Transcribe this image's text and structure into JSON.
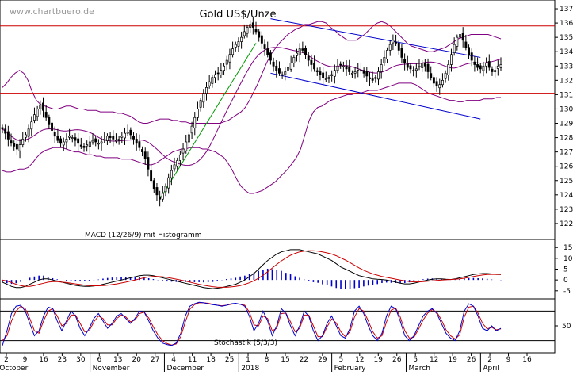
{
  "watermark": "www.chartbuero.de",
  "title": "Gold US$/Unze",
  "macd_label": "MACD (12/26/9) mit Histogramm",
  "stoch_label": "Stochastik (5/3/3)",
  "colors": {
    "candle": "#000000",
    "bollinger": "#800080",
    "support_resistance": "#cc0000",
    "trend_channel": "#0000cc",
    "uptrend": "#009900",
    "macd_line": "#000000",
    "signal_line": "#cc0000",
    "histogram": "#0000cc",
    "stoch_k": "#0000cc",
    "stoch_d": "#cc0000",
    "grid": "#000000"
  },
  "chart_data": [
    {
      "type": "candlestick",
      "title": "Gold US$/Unze",
      "ylim": [
        1210,
        1375
      ],
      "y_ticks": [
        1220,
        1230,
        1240,
        1250,
        1260,
        1270,
        1280,
        1290,
        1300,
        1310,
        1320,
        1330,
        1340,
        1350,
        1360,
        1370
      ],
      "horizontal_lines": [
        1358,
        1311
      ],
      "date_ticks": [
        "2",
        "9",
        "16",
        "23",
        "30",
        "6",
        "13",
        "20",
        "27",
        "4",
        "11",
        "18",
        "25",
        "1",
        "8",
        "15",
        "22",
        "29",
        "5",
        "12",
        "19",
        "26",
        "5",
        "12",
        "19",
        "26",
        "2",
        "9",
        "16"
      ],
      "month_labels": [
        "October",
        "November",
        "December",
        "2018",
        "February",
        "March",
        "April"
      ],
      "closes": [
        1286,
        1283,
        1279,
        1276,
        1274,
        1272,
        1275,
        1279,
        1282,
        1286,
        1291,
        1296,
        1300,
        1303,
        1299,
        1294,
        1289,
        1285,
        1281,
        1278,
        1276,
        1277,
        1279,
        1281,
        1280,
        1278,
        1276,
        1274,
        1273,
        1275,
        1277,
        1278,
        1277,
        1276,
        1277,
        1279,
        1281,
        1280,
        1279,
        1278,
        1279,
        1281,
        1283,
        1284,
        1282,
        1279,
        1276,
        1273,
        1270,
        1265,
        1258,
        1250,
        1244,
        1240,
        1237,
        1241,
        1246,
        1252,
        1257,
        1261,
        1264,
        1268,
        1272,
        1277,
        1282,
        1288,
        1294,
        1300,
        1306,
        1311,
        1315,
        1319,
        1322,
        1324,
        1325,
        1327,
        1330,
        1334,
        1338,
        1342,
        1345,
        1347,
        1350,
        1354,
        1357,
        1359,
        1357,
        1354,
        1350,
        1346,
        1342,
        1338,
        1334,
        1330,
        1327,
        1325,
        1324,
        1326,
        1329,
        1332,
        1336,
        1339,
        1342,
        1341,
        1338,
        1334,
        1331,
        1328,
        1326,
        1324,
        1322,
        1321,
        1322,
        1324,
        1327,
        1330,
        1331,
        1330,
        1328,
        1326,
        1325,
        1326,
        1328,
        1327,
        1325,
        1323,
        1321,
        1320,
        1322,
        1326,
        1331,
        1336,
        1341,
        1345,
        1348,
        1346,
        1341,
        1336,
        1332,
        1329,
        1328,
        1327,
        1328,
        1330,
        1332,
        1330,
        1326,
        1322,
        1318,
        1316,
        1317,
        1320,
        1325,
        1331,
        1338,
        1345,
        1350,
        1352,
        1348,
        1343,
        1338,
        1334,
        1331,
        1329,
        1328,
        1330,
        1332,
        1329,
        1326,
        1327,
        1330,
        1331
      ],
      "bollinger_upper": [
        1315,
        1318,
        1322,
        1325,
        1327,
        1325,
        1320,
        1312,
        1306,
        1303,
        1302,
        1301,
        1300,
        1300,
        1301,
        1302,
        1302,
        1301,
        1300,
        1300,
        1299,
        1299,
        1299,
        1298,
        1298,
        1298,
        1298,
        1297,
        1297,
        1296,
        1295,
        1293,
        1291,
        1290,
        1290,
        1291,
        1292,
        1293,
        1293,
        1293,
        1292,
        1292,
        1291,
        1291,
        1290,
        1290,
        1290,
        1290,
        1290,
        1290,
        1290,
        1290,
        1291,
        1292,
        1294,
        1296,
        1298,
        1301,
        1306,
        1312,
        1318,
        1325,
        1332,
        1338,
        1342,
        1346,
        1349,
        1352,
        1354,
        1356,
        1357,
        1359,
        1359,
        1360,
        1361,
        1361,
        1360,
        1357,
        1355,
        1352,
        1350,
        1348,
        1348,
        1348,
        1350,
        1352,
        1355,
        1358,
        1360,
        1361,
        1360,
        1358,
        1355,
        1352,
        1349,
        1346,
        1344,
        1343,
        1342,
        1341,
        1340,
        1340,
        1341,
        1342,
        1343,
        1345,
        1347,
        1349,
        1350,
        1351,
        1352,
        1352,
        1352,
        1352,
        1352,
        1351,
        1350,
        1349
      ],
      "bollinger_lower": [
        1257,
        1256,
        1256,
        1257,
        1258,
        1258,
        1259,
        1262,
        1266,
        1269,
        1271,
        1272,
        1273,
        1273,
        1273,
        1272,
        1271,
        1270,
        1270,
        1269,
        1268,
        1268,
        1267,
        1267,
        1266,
        1266,
        1266,
        1266,
        1265,
        1265,
        1265,
        1264,
        1263,
        1262,
        1261,
        1261,
        1262,
        1264,
        1266,
        1268,
        1270,
        1271,
        1272,
        1272,
        1273,
        1273,
        1273,
        1272,
        1272,
        1271,
        1270,
        1268,
        1266,
        1262,
        1257,
        1251,
        1246,
        1243,
        1241,
        1241,
        1242,
        1243,
        1245,
        1247,
        1249,
        1252,
        1255,
        1258,
        1262,
        1266,
        1272,
        1282,
        1292,
        1298,
        1301,
        1302,
        1304,
        1306,
        1307,
        1308,
        1309,
        1310,
        1310,
        1311,
        1311,
        1312,
        1313,
        1313,
        1313,
        1314,
        1315,
        1316,
        1317,
        1318,
        1318,
        1318,
        1318,
        1317,
        1315,
        1313,
        1311,
        1310,
        1309,
        1308,
        1307,
        1306,
        1306,
        1305,
        1305,
        1306,
        1306,
        1306,
        1306,
        1307,
        1307,
        1307,
        1308,
        1308
      ],
      "trend_channel_upper": [
        1363,
        1336
      ],
      "trend_channel_lower": [
        1325,
        1293
      ],
      "uptrend_line": [
        1237,
        1346
      ]
    },
    {
      "type": "line",
      "title": "MACD (12/26/9) mit Histogramm",
      "ylim": [
        -8,
        18
      ],
      "y_ticks": [
        15,
        10,
        5,
        0,
        -5
      ],
      "series": [
        {
          "values": [
            -1,
            -2,
            -3,
            -3.5,
            -3.5,
            -3,
            -2,
            -1,
            0,
            0.5,
            0.5,
            0,
            -0.5,
            -1,
            -1.5,
            -2,
            -2.5,
            -2.8,
            -3,
            -3,
            -2.8,
            -2.5,
            -2,
            -1.5,
            -1,
            -0.5,
            0,
            0.5,
            1,
            1.5,
            2,
            2.2,
            2.2,
            2,
            1.5,
            1,
            0.5,
            0,
            -0.5,
            -1,
            -1.5,
            -2,
            -2.5,
            -3,
            -3.5,
            -3.8,
            -4,
            -3.8,
            -3.5,
            -3,
            -2.5,
            -2,
            -1,
            0,
            1.5,
            3,
            5,
            7,
            9,
            10.5,
            12,
            13,
            13.5,
            14,
            14,
            14,
            13.5,
            13,
            12.5,
            12,
            11,
            10,
            9,
            7.5,
            6,
            5,
            4,
            3,
            2,
            1.5,
            1,
            0.5,
            0.3,
            0.2,
            0,
            -0.5,
            -1,
            -1.5,
            -1.8,
            -1.8,
            -1.5,
            -1,
            -0.5,
            0,
            0.3,
            0.5,
            0.5,
            0.3,
            0.2,
            0.5,
            1,
            1.5,
            2,
            2.5,
            2.8,
            3,
            3,
            2.8,
            2.6,
            2.5
          ]
        },
        {
          "values": [
            0,
            -0.5,
            -1.2,
            -2,
            -2.6,
            -3,
            -3,
            -2.6,
            -2,
            -1.5,
            -1,
            -0.8,
            -0.8,
            -1,
            -1.2,
            -1.5,
            -1.8,
            -2.1,
            -2.4,
            -2.6,
            -2.7,
            -2.7,
            -2.6,
            -2.4,
            -2.1,
            -1.8,
            -1.4,
            -1,
            -0.5,
            0,
            0.5,
            1,
            1.4,
            1.6,
            1.6,
            1.5,
            1.2,
            0.8,
            0.4,
            0,
            -0.5,
            -1,
            -1.5,
            -2,
            -2.4,
            -2.8,
            -3.1,
            -3.3,
            -3.4,
            -3.4,
            -3.2,
            -3,
            -2.6,
            -2,
            -1.3,
            -0.4,
            0.8,
            2.2,
            3.8,
            5.5,
            7.2,
            8.8,
            10.2,
            11.4,
            12.3,
            13,
            13.3,
            13.5,
            13.5,
            13.3,
            13,
            12.5,
            12,
            11.2,
            10.2,
            9.2,
            8,
            6.8,
            5.6,
            4.5,
            3.6,
            2.8,
            2.2,
            1.6,
            1.2,
            0.8,
            0.4,
            0,
            -0.4,
            -0.7,
            -0.9,
            -0.9,
            -0.8,
            -0.6,
            -0.4,
            -0.2,
            0,
            0.1,
            0.2,
            0.3,
            0.5,
            0.8,
            1.2,
            1.6,
            2,
            2.3,
            2.5,
            2.6,
            2.6,
            2.6
          ]
        }
      ]
    },
    {
      "type": "line",
      "title": "Stochastik (5/3/3)",
      "ylim": [
        0,
        100
      ],
      "y_ticks": [
        50
      ],
      "reference_lines": [
        80,
        20
      ],
      "series": [
        {
          "values": [
            10,
            40,
            75,
            90,
            92,
            80,
            55,
            30,
            40,
            70,
            88,
            85,
            60,
            40,
            60,
            80,
            70,
            45,
            30,
            45,
            65,
            75,
            60,
            45,
            55,
            70,
            75,
            65,
            55,
            65,
            80,
            78,
            60,
            40,
            25,
            15,
            12,
            10,
            15,
            35,
            70,
            90,
            95,
            98,
            97,
            95,
            93,
            92,
            90,
            92,
            95,
            96,
            94,
            90,
            70,
            40,
            55,
            80,
            60,
            30,
            50,
            85,
            75,
            50,
            30,
            50,
            80,
            70,
            40,
            20,
            30,
            55,
            70,
            50,
            30,
            25,
            45,
            80,
            90,
            75,
            50,
            30,
            20,
            35,
            70,
            90,
            85,
            60,
            30,
            20,
            30,
            50,
            70,
            80,
            85,
            75,
            55,
            35,
            25,
            20,
            40,
            80,
            95,
            90,
            70,
            45,
            40,
            50,
            40,
            45
          ]
        },
        {
          "values": [
            20,
            30,
            60,
            80,
            90,
            85,
            65,
            40,
            35,
            60,
            80,
            85,
            70,
            50,
            55,
            72,
            72,
            55,
            38,
            40,
            58,
            70,
            65,
            52,
            52,
            65,
            72,
            68,
            58,
            62,
            75,
            78,
            66,
            48,
            32,
            20,
            14,
            11,
            13,
            28,
            58,
            84,
            93,
            97,
            97,
            96,
            94,
            92,
            91,
            92,
            94,
            95,
            94,
            92,
            78,
            52,
            50,
            70,
            65,
            40,
            45,
            75,
            76,
            58,
            38,
            45,
            72,
            72,
            50,
            28,
            28,
            48,
            64,
            56,
            38,
            28,
            38,
            68,
            85,
            80,
            60,
            38,
            25,
            30,
            58,
            82,
            86,
            68,
            40,
            25,
            27,
            43,
            62,
            76,
            83,
            78,
            62,
            42,
            30,
            23,
            32,
            68,
            88,
            90,
            76,
            55,
            44,
            47,
            42,
            44
          ]
        }
      ]
    }
  ]
}
